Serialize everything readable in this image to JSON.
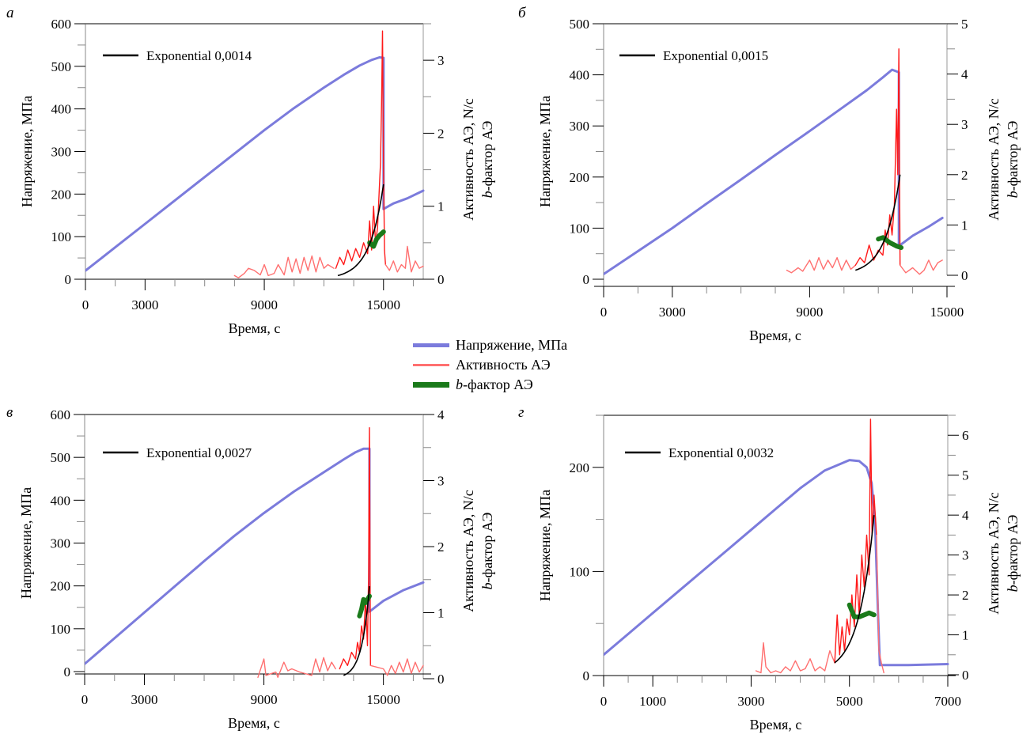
{
  "legend": {
    "items": [
      {
        "label": "Напряжение, МПа",
        "color": "#7b7bdc",
        "key": "stress"
      },
      {
        "label": "Активность АЭ",
        "color": "#ff6b6b",
        "key": "activity"
      },
      {
        "label_italic": "b",
        "label": "-фактор АЭ",
        "color": "#1a7a1a",
        "key": "bfactor"
      }
    ]
  },
  "colors": {
    "stress": "#7b7bdc",
    "activity_light": "#ff7070",
    "activity_dark": "#ff1a1a",
    "bfactor": "#1a7a1a",
    "fit": "#000000",
    "axis": "#000000",
    "right_axis": "#999999"
  },
  "chart_data": [
    {
      "type": "line",
      "panel_label": "а",
      "fit_label": "Exponential 0,0014",
      "xlabel": "Время, с",
      "ylabel": "Напряжение, МПа",
      "ylabel_right_1": "Активность АЭ, N/c",
      "ylabel_right_2_italic": "b",
      "ylabel_right_2": "-фактор АЭ",
      "xlim": [
        0,
        17000
      ],
      "ylim": [
        0,
        600
      ],
      "ylim_right": [
        0,
        3.5
      ],
      "xticks": [
        0,
        3000,
        9000,
        15000
      ],
      "xticks_minor_step": 1500,
      "yticks": [
        0,
        100,
        200,
        300,
        400,
        500,
        600
      ],
      "yticks_minor_step": 50,
      "yticks_right": [
        0,
        1,
        2,
        3
      ],
      "yticks_right_minor_step": 0.5,
      "series": [
        {
          "name": "Напряжение, МПа",
          "axis": "left",
          "x": [
            0,
            1500,
            3000,
            4500,
            6000,
            7500,
            9000,
            10500,
            12000,
            13000,
            13800,
            14400,
            14800,
            15000,
            15000,
            15500,
            16200,
            17000
          ],
          "y": [
            20,
            75,
            130,
            185,
            240,
            295,
            350,
            402,
            450,
            480,
            502,
            515,
            521,
            520,
            165,
            178,
            190,
            208
          ]
        },
        {
          "name": "Активность АЭ",
          "axis": "right",
          "shade": "light",
          "x": [
            7500,
            7700,
            8000,
            8200,
            8500,
            8800,
            9000,
            9200,
            9500,
            9700,
            10000,
            10200,
            10400,
            10600,
            10800,
            11000,
            11200,
            11400,
            11600,
            11800,
            12000,
            12200,
            12500
          ],
          "y": [
            0.05,
            0.02,
            0.08,
            0.15,
            0.12,
            0.06,
            0.2,
            0.05,
            0.08,
            0.2,
            0.06,
            0.3,
            0.1,
            0.28,
            0.08,
            0.3,
            0.12,
            0.32,
            0.1,
            0.3,
            0.15,
            0.2,
            0.15
          ]
        },
        {
          "name": "Активность АЭ (пик)",
          "axis": "right",
          "shade": "dark",
          "x": [
            12600,
            12800,
            13000,
            13200,
            13400,
            13600,
            13800,
            14000,
            14200,
            14300,
            14400,
            14500,
            14600,
            14700,
            14800,
            14850,
            14900,
            14950,
            15000,
            15050,
            15100
          ],
          "y": [
            0.15,
            0.3,
            0.2,
            0.4,
            0.25,
            0.42,
            0.3,
            0.5,
            0.35,
            0.8,
            0.4,
            1.0,
            0.5,
            0.7,
            1.3,
            1.6,
            2.4,
            3.4,
            1.5,
            0.4,
            0.2
          ]
        },
        {
          "name": "Активность АЭ (после)",
          "axis": "right",
          "shade": "light",
          "x": [
            15100,
            15300,
            15500,
            15700,
            15900,
            16100,
            16200,
            16400,
            16600,
            16800,
            17000
          ],
          "y": [
            0.2,
            0.12,
            0.25,
            0.1,
            0.2,
            0.15,
            0.45,
            0.1,
            0.25,
            0.15,
            0.18
          ]
        },
        {
          "name": "b-фактор АЭ",
          "axis": "right",
          "x": [
            14300,
            14500,
            14650,
            14800,
            15000
          ],
          "y": [
            0.5,
            0.45,
            0.55,
            0.6,
            0.65
          ]
        },
        {
          "name": "Exponential 0,0014",
          "axis": "right",
          "fit_rate": 0.0014,
          "x_range": [
            12700,
            15000
          ],
          "y_start": 0.05,
          "y_end": 1.3
        }
      ]
    },
    {
      "type": "line",
      "panel_label": "б",
      "fit_label": "Exponential 0,0015",
      "xlabel": "Время, с",
      "ylabel": "Напряжение, МПа",
      "ylabel_right_1": "Активность АЭ, N/c",
      "ylabel_right_2_italic": "b",
      "ylabel_right_2": "-фактор АЭ",
      "xlim": [
        0,
        15000
      ],
      "ylim": [
        0,
        500
      ],
      "ylim_right": [
        0,
        5
      ],
      "xticks": [
        0,
        3000,
        9000,
        15000
      ],
      "xticks_minor_step": 1500,
      "yticks": [
        0,
        100,
        200,
        300,
        400,
        500
      ],
      "yticks_minor_step": 50,
      "yticks_right": [
        0,
        1,
        2,
        3,
        4,
        5
      ],
      "yticks_right_minor_step": 0.5,
      "series": [
        {
          "name": "Напряжение, МПа",
          "axis": "left",
          "x": [
            0,
            1500,
            3000,
            4500,
            6000,
            7500,
            9000,
            10500,
            11500,
            12200,
            12600,
            12900,
            12900,
            13500,
            14200,
            14800
          ],
          "y": [
            10,
            55,
            100,
            148,
            195,
            243,
            290,
            338,
            370,
            395,
            410,
            405,
            65,
            85,
            103,
            120
          ]
        },
        {
          "name": "Активность АЭ",
          "axis": "right",
          "shade": "light",
          "x": [
            8000,
            8200,
            8500,
            8700,
            9000,
            9200,
            9400,
            9600,
            9800,
            10000,
            10200,
            10400,
            10600,
            10800,
            11000
          ],
          "y": [
            0.1,
            0.05,
            0.15,
            0.08,
            0.3,
            0.1,
            0.35,
            0.12,
            0.3,
            0.15,
            0.35,
            0.1,
            0.3,
            0.12,
            0.2
          ]
        },
        {
          "name": "Активность АЭ (пик)",
          "axis": "right",
          "shade": "dark",
          "x": [
            11000,
            11200,
            11400,
            11600,
            11800,
            12000,
            12200,
            12300,
            12400,
            12500,
            12600,
            12700,
            12800,
            12850,
            12900,
            12950
          ],
          "y": [
            0.2,
            0.35,
            0.25,
            0.6,
            0.3,
            0.5,
            0.4,
            0.9,
            0.6,
            1.2,
            0.8,
            1.4,
            3.3,
            2.0,
            4.5,
            0.2
          ]
        },
        {
          "name": "Активность АЭ (после)",
          "axis": "right",
          "shade": "light",
          "x": [
            12950,
            13200,
            13500,
            13800,
            14000,
            14200,
            14400,
            14600,
            14800
          ],
          "y": [
            0.2,
            0.05,
            0.15,
            0.02,
            0.1,
            0.3,
            0.1,
            0.25,
            0.3
          ]
        },
        {
          "name": "b-фактор АЭ",
          "axis": "right",
          "x": [
            12000,
            12200,
            12500,
            12800,
            13000
          ],
          "y": [
            0.72,
            0.75,
            0.65,
            0.58,
            0.55
          ]
        },
        {
          "name": "Exponential 0,0015",
          "axis": "right",
          "fit_rate": 0.0015,
          "x_range": [
            11000,
            12950
          ],
          "y_start": 0.1,
          "y_end": 2.0
        }
      ]
    },
    {
      "type": "line",
      "panel_label": "в",
      "fit_label": "Exponential 0,0027",
      "xlabel": "Время, с",
      "ylabel": "Напряжение, МПа",
      "ylabel_right_1": "Активность АЭ, N/c",
      "ylabel_right_2_italic": "b",
      "ylabel_right_2": "-фактор АЭ",
      "xlim": [
        0,
        17000
      ],
      "ylim": [
        0,
        600
      ],
      "ylim_right": [
        0,
        4
      ],
      "xticks": [
        0,
        3000,
        9000,
        15000
      ],
      "xticks_minor_step": 1500,
      "yticks": [
        0,
        100,
        200,
        300,
        400,
        500,
        600
      ],
      "yticks_minor_step": 50,
      "yticks_right": [
        0,
        1,
        2,
        3,
        4
      ],
      "yticks_right_minor_step": 0.5,
      "series": [
        {
          "name": "Напряжение, МПа",
          "axis": "left",
          "x": [
            0,
            1500,
            3000,
            4500,
            6000,
            7500,
            9000,
            10500,
            12000,
            13000,
            13600,
            14000,
            14300,
            14300,
            15000,
            16000,
            17000
          ],
          "y": [
            18,
            78,
            138,
            198,
            258,
            316,
            370,
            420,
            465,
            495,
            512,
            520,
            520,
            140,
            165,
            190,
            208
          ]
        },
        {
          "name": "Активность АЭ",
          "axis": "right",
          "shade": "light",
          "x": [
            8700,
            9000,
            9100,
            9600,
            9700,
            10000,
            10200,
            10400,
            10800,
            11400,
            11600,
            11800,
            12000,
            12200,
            12400,
            12600
          ],
          "y": [
            0.02,
            0.3,
            0.05,
            0.1,
            0.02,
            0.25,
            0.12,
            0.15,
            0.1,
            0.05,
            0.3,
            0.1,
            0.32,
            0.12,
            0.25,
            0.15
          ]
        },
        {
          "name": "Активность АЭ (пик)",
          "axis": "right",
          "shade": "dark",
          "x": [
            12800,
            13000,
            13200,
            13400,
            13600,
            13700,
            13800,
            13900,
            14000,
            14100,
            14200,
            14250,
            14300,
            14350
          ],
          "y": [
            0.15,
            0.3,
            0.2,
            0.4,
            0.3,
            0.55,
            0.4,
            0.8,
            0.6,
            1.2,
            0.5,
            1.5,
            3.8,
            0.2
          ]
        },
        {
          "name": "Активность АЭ (после)",
          "axis": "right",
          "shade": "light",
          "x": [
            14350,
            15000,
            15200,
            15400,
            15600,
            15800,
            16000,
            16200,
            16400,
            16600,
            16800,
            17000
          ],
          "y": [
            0.2,
            0.15,
            0.05,
            0.2,
            0.08,
            0.25,
            0.1,
            0.3,
            0.08,
            0.25,
            0.1,
            0.2
          ]
        },
        {
          "name": "b-фактор АЭ",
          "axis": "right",
          "x": [
            13800,
            13900,
            14000,
            14100,
            14200,
            14300
          ],
          "y": [
            0.95,
            1.05,
            1.2,
            1.15,
            1.2,
            1.25
          ]
        },
        {
          "name": "Exponential 0,0027",
          "axis": "right",
          "fit_rate": 0.0027,
          "x_range": [
            13000,
            14300
          ],
          "y_start": 0.05,
          "y_end": 1.4
        }
      ]
    },
    {
      "type": "line",
      "panel_label": "г",
      "fit_label": "Exponential 0,0032",
      "xlabel": "Время, с",
      "ylabel": "Напряжение, МПа",
      "ylabel_right_1": "Активность АЭ, N/c",
      "ylabel_right_2_italic": "b",
      "ylabel_right_2": "-фактор АЭ",
      "xlim": [
        0,
        7000
      ],
      "ylim": [
        0,
        250
      ],
      "ylim_right": [
        0,
        6.5
      ],
      "xticks": [
        0,
        1000,
        3000,
        5000,
        7000
      ],
      "xticks_minor_step": 500,
      "yticks": [
        0,
        100,
        200
      ],
      "yticks_minor_step": 50,
      "yticks_right": [
        0,
        1,
        2,
        3,
        4,
        5,
        6
      ],
      "yticks_right_minor_step": 0.5,
      "series": [
        {
          "name": "Напряжение, МПа",
          "axis": "left",
          "x": [
            0,
            500,
            1000,
            1500,
            2000,
            2500,
            3000,
            3500,
            4000,
            4500,
            4800,
            5000,
            5200,
            5350,
            5450,
            5520,
            5580,
            5620,
            5700,
            6200,
            7000
          ],
          "y": [
            20,
            40,
            60,
            80,
            100,
            120,
            140,
            160,
            180,
            197,
            203,
            207,
            206,
            200,
            185,
            150,
            60,
            10,
            10,
            10,
            11
          ]
        },
        {
          "name": "Активность АЭ",
          "axis": "right",
          "shade": "light",
          "x": [
            3100,
            3200,
            3250,
            3300,
            3400,
            3500,
            3600,
            3700,
            3800,
            3900,
            4000,
            4100,
            4200,
            4300,
            4400,
            4500,
            4600,
            4700
          ],
          "y": [
            0.1,
            0.05,
            0.8,
            0.2,
            0.05,
            0.1,
            0.05,
            0.2,
            0.1,
            0.35,
            0.1,
            0.15,
            0.4,
            0.1,
            0.2,
            0.1,
            0.6,
            0.3
          ]
        },
        {
          "name": "Активность АЭ (пик)",
          "axis": "right",
          "shade": "dark",
          "x": [
            4700,
            4750,
            4800,
            4850,
            4900,
            4950,
            5000,
            5050,
            5100,
            5150,
            5200,
            5250,
            5300,
            5350,
            5400,
            5430,
            5460,
            5500,
            5550
          ],
          "y": [
            0.3,
            1.5,
            0.5,
            1.2,
            0.6,
            1.4,
            1.0,
            2.0,
            1.2,
            2.5,
            1.5,
            3.0,
            2.2,
            3.5,
            2.5,
            6.4,
            3.5,
            4.5,
            3.5
          ]
        },
        {
          "name": "Активность АЭ (после)",
          "axis": "right",
          "shade": "light",
          "x": [
            5550,
            5600,
            5650,
            5700
          ],
          "y": [
            3.5,
            0.6,
            0.3,
            0.05
          ]
        },
        {
          "name": "b-фактор АЭ",
          "axis": "right",
          "x": [
            5000,
            5100,
            5200,
            5300,
            5400,
            5500
          ],
          "y": [
            1.75,
            1.45,
            1.45,
            1.5,
            1.55,
            1.5
          ]
        },
        {
          "name": "Exponential 0,0032",
          "axis": "right",
          "fit_rate": 0.0032,
          "x_range": [
            4700,
            5500
          ],
          "y_start": 0.3,
          "y_end": 4.0
        }
      ]
    }
  ]
}
